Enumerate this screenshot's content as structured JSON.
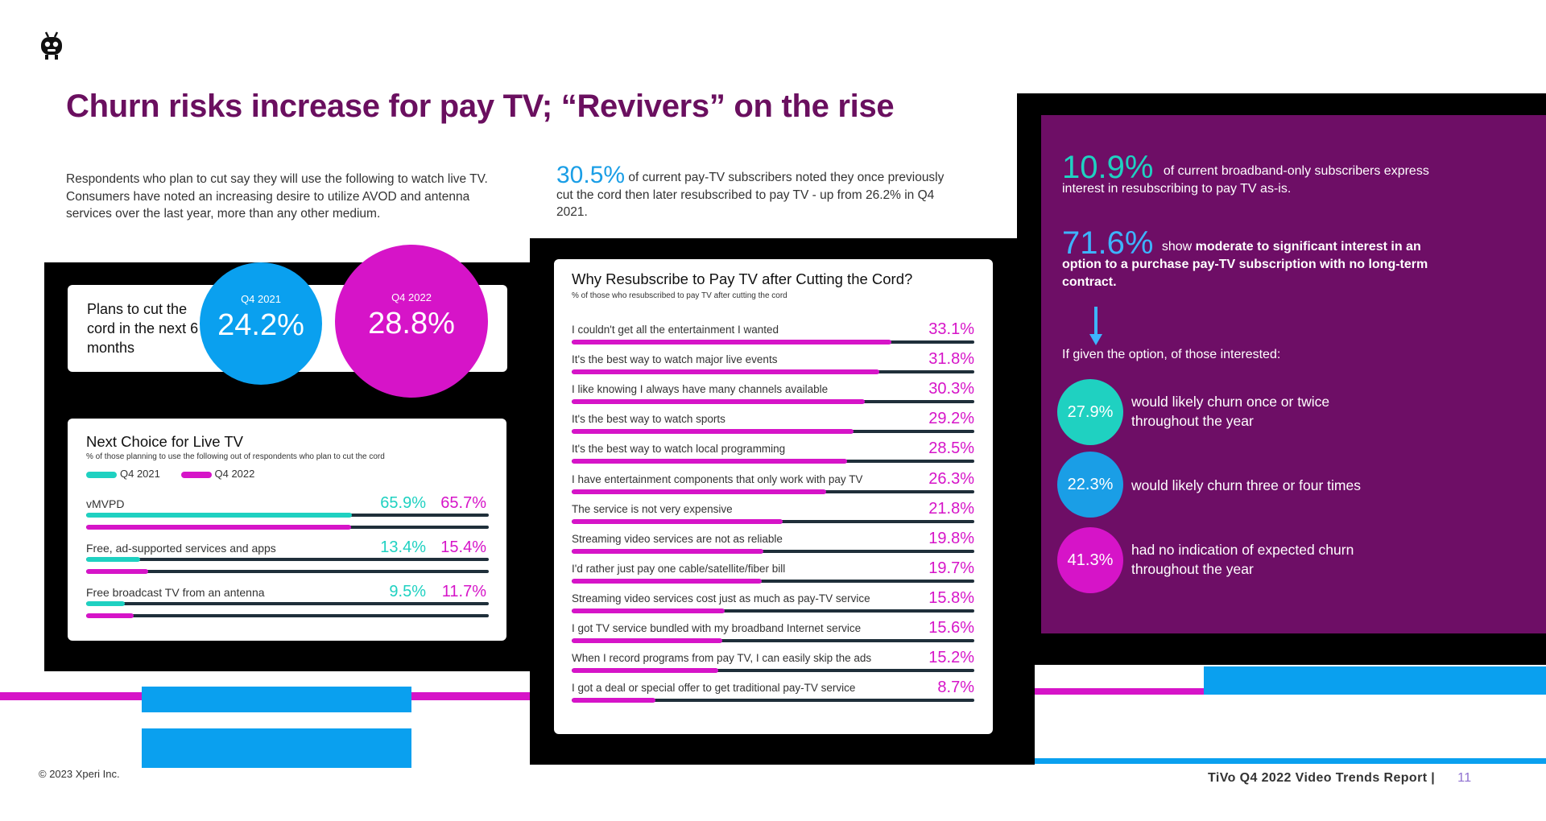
{
  "slide_title": "Churn risks increase for pay TV; “Revivers” on the rise",
  "intro_left": "Respondents who plan to cut say they will use the following to watch live TV. Consumers have noted an increasing desire to utilize AVOD and antenna services over the last year, more than any other medium.",
  "intro_mid": {
    "stat": "30.5%",
    "text": " of current pay-TV subscribers noted they once previously cut the cord then later resubscribed to pay TV - up from 26.2% in Q4 2021."
  },
  "plans_card": {
    "label": "Plans to cut the cord in the next 6 months",
    "q2021_label": "Q4 2021",
    "q2021_value": "24.2%",
    "q2022_label": "Q4 2022",
    "q2022_value": "28.8%"
  },
  "next_choice": {
    "title": "Next Choice for Live TV",
    "subtitle": "% of those planning to use the following out of respondents who plan to cut the cord",
    "legend_2021": "Q4 2021",
    "legend_2022": "Q4 2022",
    "rows": [
      {
        "label": "vMVPD",
        "v2021": "65.9%",
        "v2022": "65.7%",
        "f2021": 0.659,
        "f2022": 0.657
      },
      {
        "label": "Free, ad-supported services and apps",
        "v2021": "13.4%",
        "v2022": "15.4%",
        "f2021": 0.134,
        "f2022": 0.154
      },
      {
        "label": "Free broadcast TV from an antenna",
        "v2021": "9.5%",
        "v2022": "11.7%",
        "f2021": 0.095,
        "f2022": 0.117
      }
    ]
  },
  "resubscribe": {
    "title": "Why Resubscribe to Pay TV after Cutting the Cord?",
    "subtitle": "% of those who resubscribed to pay TV after cutting the cord",
    "rows": [
      {
        "label": "I couldn't get all the entertainment I wanted",
        "value": "33.1%",
        "frac": 0.331
      },
      {
        "label": "It's the best way to watch major live events",
        "value": "31.8%",
        "frac": 0.318
      },
      {
        "label": "I like knowing I always have many channels available",
        "value": "30.3%",
        "frac": 0.303
      },
      {
        "label": "It's the best way to watch sports",
        "value": "29.2%",
        "frac": 0.292
      },
      {
        "label": "It's the best way to watch local programming",
        "value": "28.5%",
        "frac": 0.285
      },
      {
        "label": "I have entertainment components that only work with pay TV",
        "value": "26.3%",
        "frac": 0.263
      },
      {
        "label": "The service is not very expensive",
        "value": "21.8%",
        "frac": 0.218
      },
      {
        "label": "Streaming video services are not as reliable",
        "value": "19.8%",
        "frac": 0.198
      },
      {
        "label": "I'd rather just pay one cable/satellite/fiber bill",
        "value": "19.7%",
        "frac": 0.197
      },
      {
        "label": "Streaming video services cost just as much as pay-TV service",
        "value": "15.8%",
        "frac": 0.158
      },
      {
        "label": "I got TV service bundled with my broadband Internet service",
        "value": "15.6%",
        "frac": 0.156
      },
      {
        "label": "When I record programs from pay TV, I can easily skip the ads",
        "value": "15.2%",
        "frac": 0.152
      },
      {
        "label": "I got a deal or special offer to get traditional pay-TV service",
        "value": "8.7%",
        "frac": 0.087
      }
    ]
  },
  "purple_panel": {
    "stat1": "10.9%",
    "stat1_text": "of current broadband-only subscribers express interest in resubscribing to pay TV as-is.",
    "stat2": "71.6%",
    "stat2_pre": "show ",
    "stat2_bold": "moderate to significant interest in an option to a purchase pay-TV subscription with no long-term contract.",
    "if_given": "If given the option, of those interested:",
    "churn": [
      {
        "value": "27.9%",
        "text": "would likely churn once or twice throughout the year",
        "color": "#1fd1c1"
      },
      {
        "value": "22.3%",
        "text": "would likely churn three or four times",
        "color": "#1a9ee6"
      },
      {
        "value": "41.3%",
        "text": "had no indication of expected churn throughout the year",
        "color": "#d614c8"
      }
    ]
  },
  "colors": {
    "title": "#6a0f5f",
    "magenta": "#d614c8",
    "teal": "#1fd1c1",
    "blue": "#1a9ee6",
    "purple": "#6e0e66"
  },
  "footer": {
    "copyright": "© 2023 Xperi Inc.",
    "report": "TiVo Q4 2022 Video Trends Report  |",
    "page": "11"
  }
}
